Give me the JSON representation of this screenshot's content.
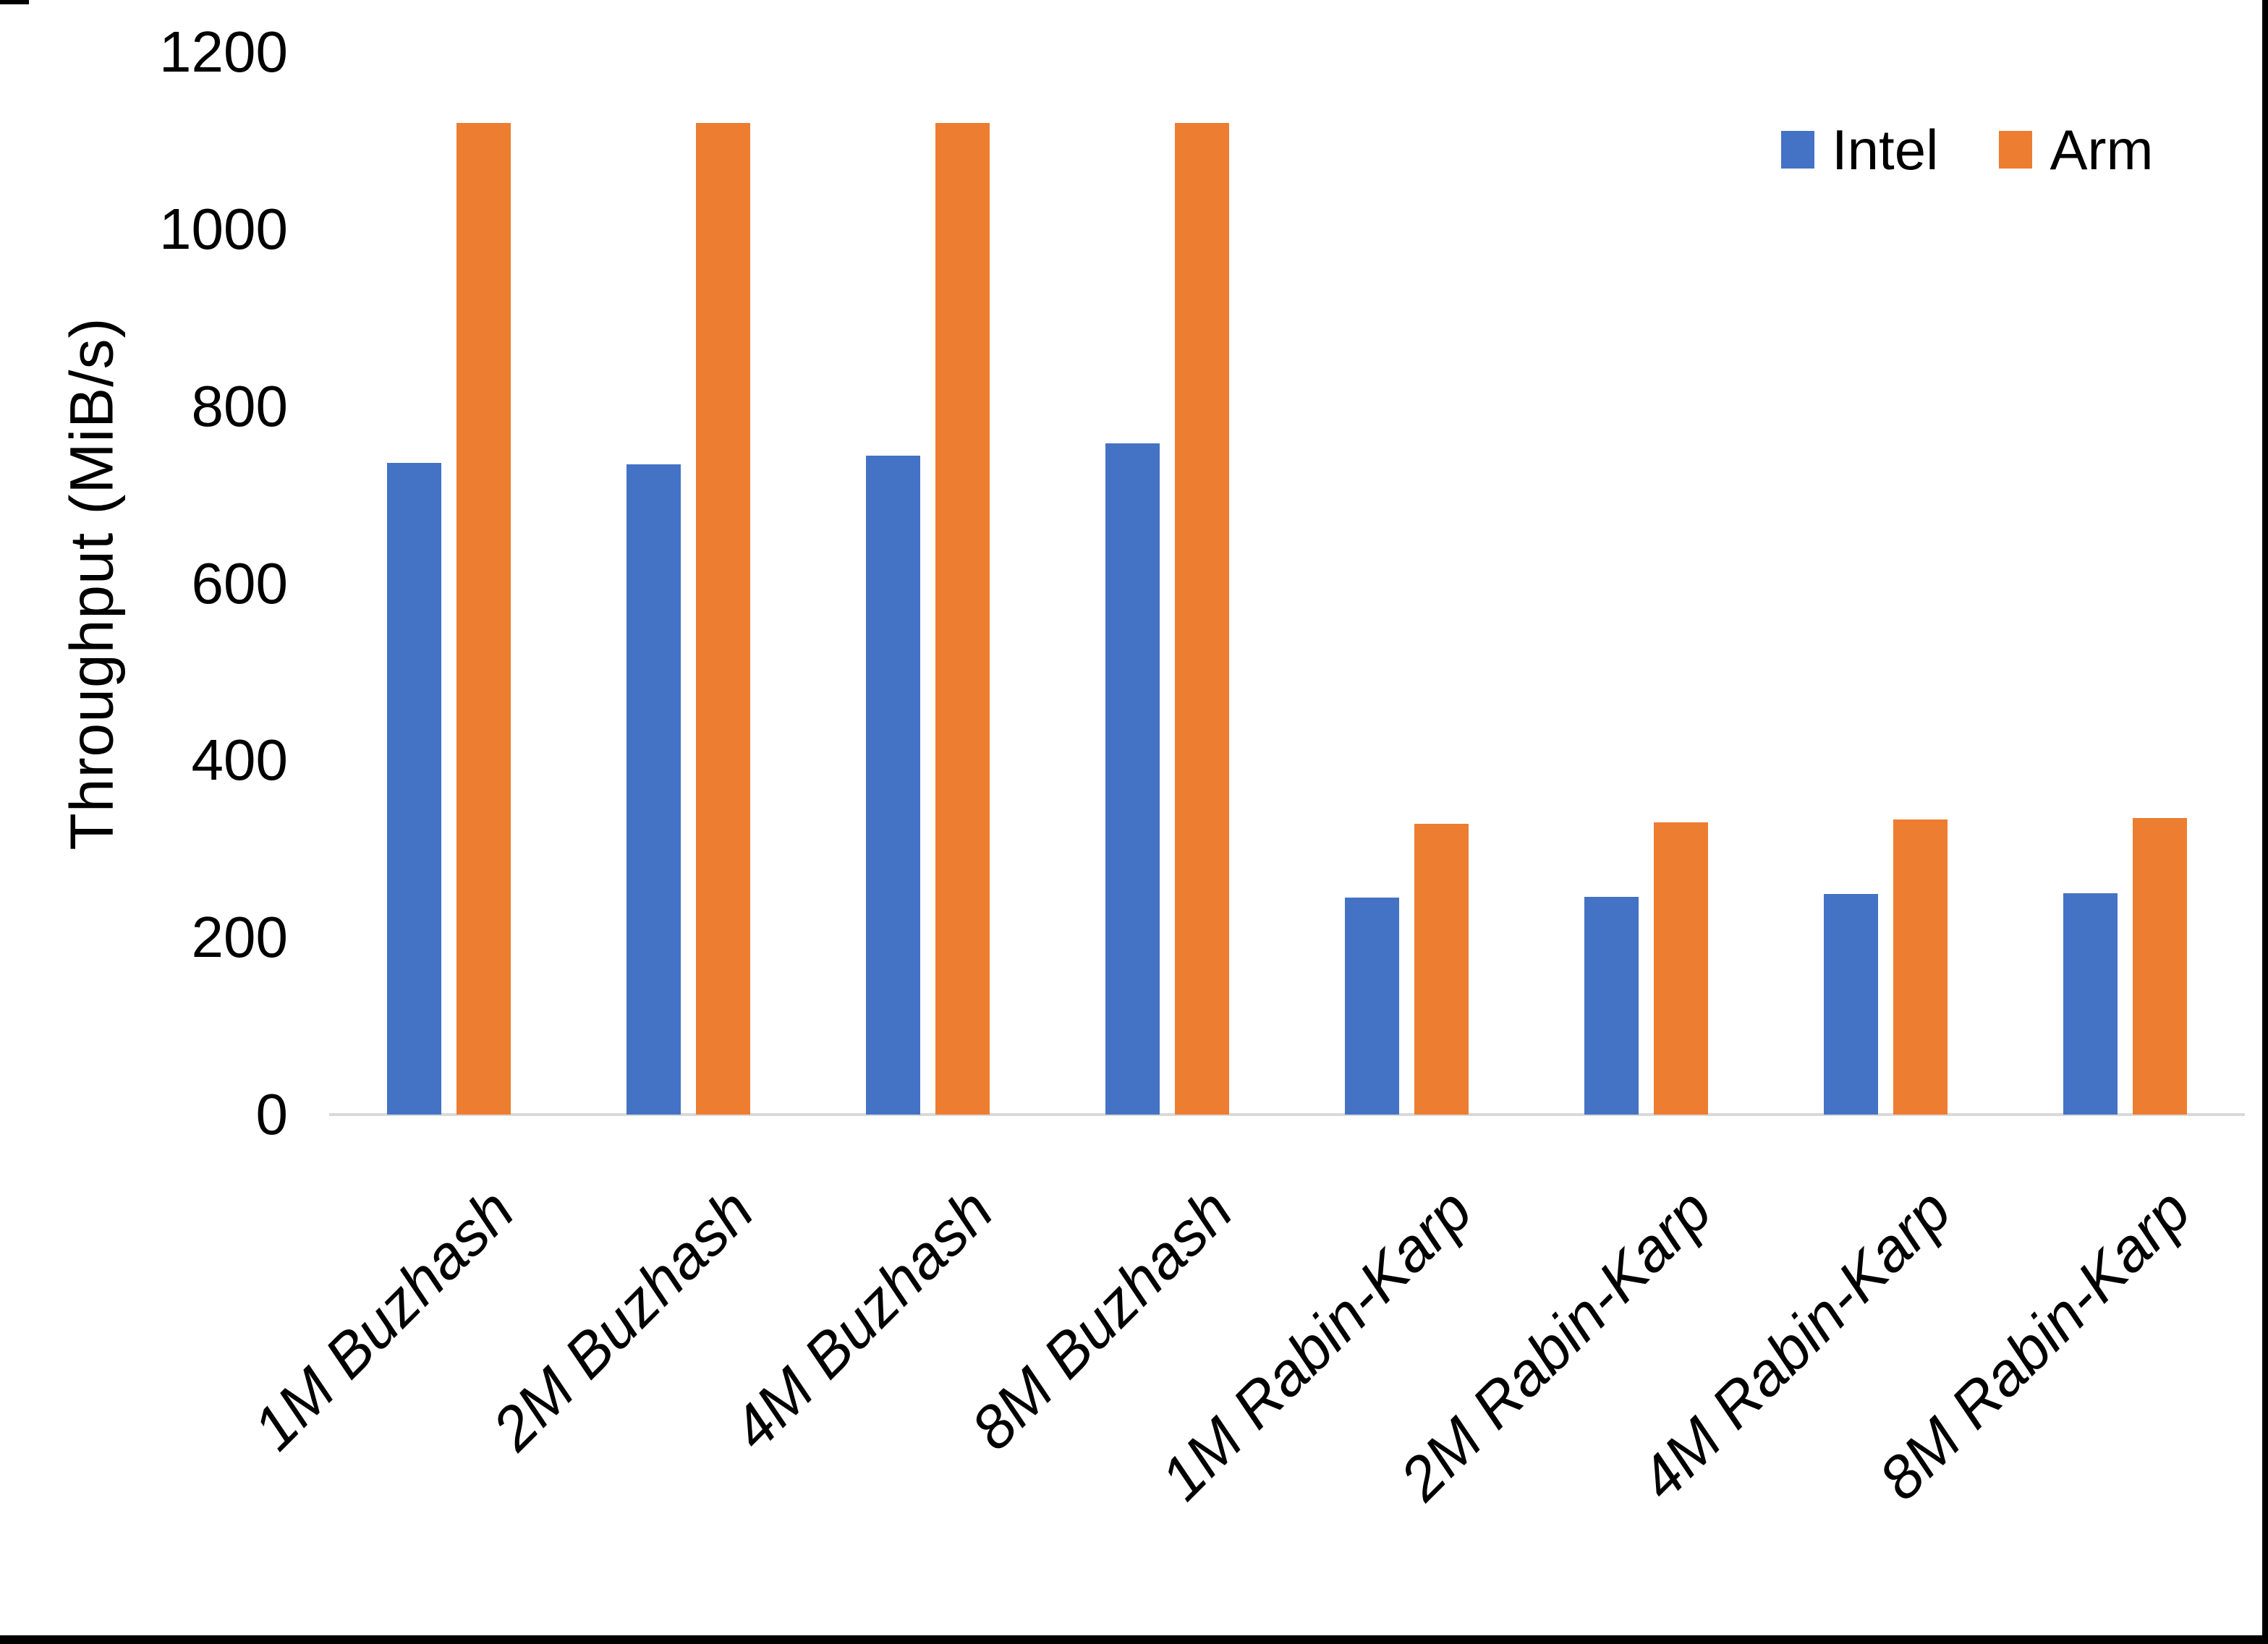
{
  "chart_data": {
    "type": "bar",
    "title": "",
    "xlabel": "",
    "ylabel": "Throughput (MiB/s)",
    "ylim": [
      0,
      1200
    ],
    "yticks": [
      0,
      200,
      400,
      600,
      800,
      1000,
      1200
    ],
    "grid": false,
    "legend_position": "top-right",
    "categories": [
      "1M Buzhash",
      "2M Buzhash",
      "4M Buzhash",
      "8M Buzhash",
      "1M Rabin-Karp",
      "2M Rabin-Karp",
      "4M Rabin-Karp",
      "8M Rabin-Karp"
    ],
    "series": [
      {
        "name": "Intel",
        "color": "#4472C4",
        "values": [
          736,
          734,
          744,
          758,
          245,
          246,
          249,
          250
        ]
      },
      {
        "name": "Arm",
        "color": "#ED7D31",
        "values": [
          1120,
          1120,
          1120,
          1120,
          328,
          330,
          333,
          335
        ]
      }
    ],
    "colors": {
      "axis_line": "#d9d9d9",
      "text": "#000000"
    }
  }
}
